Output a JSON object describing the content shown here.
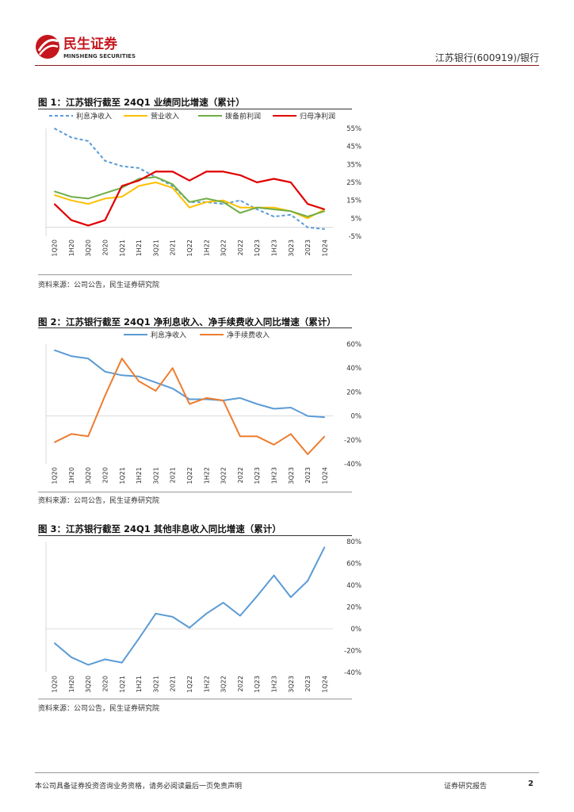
{
  "header": {
    "logo_cn": "民生证券",
    "logo_en": "MINSHENG SECURITIES",
    "right_text": "江苏银行(600919)/银行"
  },
  "figures": [
    {
      "title": "图 1：江苏银行截至 24Q1 业绩同比增速（累计）",
      "source": "资料来源：公司公告，民生证券研究院"
    },
    {
      "title": "图 2：江苏银行截至 24Q1 净利息收入、净手续费收入同比增速（累计）",
      "source": "资料来源：公司公告，民生证券研究院"
    },
    {
      "title": "图 3：江苏银行截至 24Q1 其他非息收入同比增速（累计）",
      "source": "资料来源：公司公告，民生证券研究院"
    }
  ],
  "footer": {
    "disclaimer": "本公司具备证券投资咨询业务资格，请务必阅读最后一页免责声明",
    "report_type": "证券研究报告",
    "page": "2"
  },
  "colors": {
    "brand_red": "#c4161c",
    "blue": "#5b9bd5",
    "yellow": "#ffc000",
    "green": "#70ad47",
    "red": "#e00000",
    "orange": "#ed7d31"
  },
  "chart_data": [
    {
      "type": "line",
      "title": "图 1：江苏银行截至 24Q1 业绩同比增速（累计）",
      "categories": [
        "1Q20",
        "1H20",
        "3Q20",
        "2020",
        "1Q21",
        "1H21",
        "3Q21",
        "2021",
        "1Q22",
        "1H22",
        "3Q22",
        "2022",
        "1Q23",
        "1H23",
        "3Q23",
        "2023",
        "1Q24"
      ],
      "ylim": [
        -5,
        55
      ],
      "yticks": [
        -5,
        5,
        15,
        25,
        35,
        45,
        55
      ],
      "tick_suffix": "%",
      "y_axis_side": "right",
      "legend_position": "top",
      "series": [
        {
          "name": "利息净收入",
          "color": "#5b9bd5",
          "dashed": true,
          "values": [
            55,
            50,
            48,
            37,
            34,
            33,
            28,
            23,
            14,
            14,
            13,
            15,
            10,
            6,
            7,
            0,
            -1
          ]
        },
        {
          "name": "营业收入",
          "color": "#ffc000",
          "dashed": false,
          "values": [
            18,
            15,
            13,
            16,
            17,
            23,
            25,
            22,
            11,
            14,
            15,
            11,
            11,
            11,
            9,
            5,
            10
          ]
        },
        {
          "name": "拨备前利润",
          "color": "#70ad47",
          "dashed": false,
          "values": [
            20,
            17,
            16,
            19,
            22,
            27,
            28,
            24,
            14,
            16,
            14,
            8,
            11,
            10,
            9,
            6,
            9
          ]
        },
        {
          "name": "归母净利润",
          "color": "#e00000",
          "dashed": false,
          "values": [
            13,
            4,
            1,
            4,
            23,
            26,
            31,
            31,
            26,
            31,
            31,
            29,
            25,
            27,
            25,
            13,
            10
          ]
        }
      ]
    },
    {
      "type": "line",
      "title": "图 2：江苏银行截至 24Q1 净利息收入、净手续费收入同比增速（累计）",
      "categories": [
        "1Q20",
        "1H20",
        "3Q20",
        "2020",
        "1Q21",
        "1H21",
        "3Q21",
        "2021",
        "1Q22",
        "1H22",
        "3Q22",
        "2022",
        "1Q23",
        "1H23",
        "3Q23",
        "2023",
        "1Q24"
      ],
      "ylim": [
        -40,
        60
      ],
      "yticks": [
        -40,
        -20,
        0,
        20,
        40,
        60
      ],
      "tick_suffix": "%",
      "y_axis_side": "right",
      "legend_position": "top",
      "series": [
        {
          "name": "利息净收入",
          "color": "#5b9bd5",
          "dashed": false,
          "values": [
            55,
            50,
            48,
            37,
            34,
            33,
            28,
            23,
            14,
            14,
            13,
            15,
            10,
            6,
            7,
            0,
            -1
          ]
        },
        {
          "name": "净手续费收入",
          "color": "#ed7d31",
          "dashed": false,
          "values": [
            -22,
            -15,
            -17,
            17,
            48,
            29,
            21,
            40,
            10,
            15,
            13,
            -17,
            -17,
            -24,
            -15,
            -32,
            -17
          ]
        }
      ]
    },
    {
      "type": "line",
      "title": "图 3：江苏银行截至 24Q1 其他非息收入同比增速（累计）",
      "categories": [
        "1Q20",
        "1H20",
        "3Q20",
        "2020",
        "1Q21",
        "1H21",
        "3Q21",
        "2021",
        "1Q22",
        "1H22",
        "3Q22",
        "2022",
        "1Q23",
        "1H23",
        "3Q23",
        "2023",
        "1Q24"
      ],
      "ylim": [
        -40,
        80
      ],
      "yticks": [
        -40,
        -20,
        0,
        20,
        40,
        60,
        80
      ],
      "tick_suffix": "%",
      "y_axis_side": "right",
      "legend_position": "none",
      "series": [
        {
          "color": "#5b9bd5",
          "dashed": false,
          "values": [
            -13,
            -26,
            -33,
            -28,
            -31,
            -9,
            14,
            11,
            1,
            14,
            24,
            12,
            30,
            49,
            29,
            44,
            75
          ]
        }
      ]
    }
  ]
}
